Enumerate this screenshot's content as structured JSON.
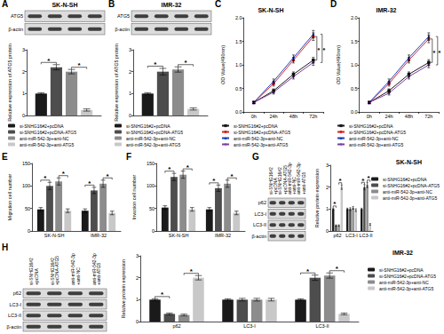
{
  "chart_data": [
    {
      "panel": "A",
      "type": "bar",
      "blot": {
        "title": "SK-N-SH",
        "rows": [
          "ATG5",
          "β-actin"
        ],
        "lanes": 4
      },
      "ylabel": "Relative expression of ATG5 protein",
      "categories": [
        null
      ],
      "tick_labels": "y",
      "ylim": [
        0,
        3
      ],
      "yticks": [
        0,
        1,
        2,
        3
      ],
      "legend": "bottom",
      "series": [
        {
          "name": "si-SNHG16#2+pcDNA",
          "color": "#1a1a1a",
          "values": [
            1.0
          ],
          "errors": [
            0.04
          ]
        },
        {
          "name": "si-SNHG16#2+pcDNA-ATG5",
          "color": "#4d4d4d",
          "values": [
            2.2
          ],
          "errors": [
            0.12
          ]
        },
        {
          "name": "anti-miR-542-3p+anti-NC",
          "color": "#8c8c8c",
          "values": [
            2.0
          ],
          "errors": [
            0.1
          ]
        },
        {
          "name": "anti-miR-542-3p+anti-ATG5",
          "color": "#c8c8c8",
          "values": [
            0.25
          ],
          "errors": [
            0.05
          ]
        }
      ],
      "significance": [
        {
          "label": "*",
          "category": 0,
          "series": [
            0,
            1
          ]
        },
        {
          "label": "*",
          "category": 0,
          "series": [
            2,
            3
          ]
        }
      ]
    },
    {
      "panel": "B",
      "type": "bar",
      "blot": {
        "title": "IMR-32",
        "rows": [
          "ATG5",
          "β-actin"
        ],
        "lanes": 4
      },
      "ylabel": "Relative expression of ATG5 protein",
      "categories": [
        null
      ],
      "tick_labels": "y",
      "ylim": [
        0,
        3
      ],
      "yticks": [
        0,
        1,
        2,
        3
      ],
      "legend": "bottom",
      "series": [
        {
          "name": "si-SNHG16#2+pcDNA",
          "color": "#1a1a1a",
          "values": [
            1.0
          ],
          "errors": [
            0.04
          ]
        },
        {
          "name": "si-SNHG16#2+pcDNA-ATG5",
          "color": "#4d4d4d",
          "values": [
            2.0
          ],
          "errors": [
            0.15
          ]
        },
        {
          "name": "anti-miR-542-3p+anti-NC",
          "color": "#8c8c8c",
          "values": [
            2.1
          ],
          "errors": [
            0.12
          ]
        },
        {
          "name": "anti-miR-542-3p+anti-ATG5",
          "color": "#c8c8c8",
          "values": [
            0.3
          ],
          "errors": [
            0.05
          ]
        }
      ],
      "significance": [
        {
          "label": "*",
          "category": 0,
          "series": [
            0,
            1
          ]
        },
        {
          "label": "*",
          "category": 0,
          "series": [
            2,
            3
          ]
        }
      ]
    },
    {
      "panel": "C",
      "type": "line",
      "title": "SK-N-SH",
      "ylabel": "OD Value(490nm)",
      "categories": [
        "0h",
        "24h",
        "48h",
        "72h"
      ],
      "ylim": [
        0,
        2
      ],
      "yticks": [
        {
          "value": 0,
          "label": "0.0"
        },
        0.5,
        {
          "value": 1,
          "label": "1.0"
        },
        1.5,
        {
          "value": 2,
          "label": "2.0"
        }
      ],
      "legend": "bottom",
      "series": [
        {
          "name": "si-SNHG16#2+pcDNA",
          "color": "#1a1a1a",
          "marker": "rect",
          "values": [
            0.2,
            0.45,
            0.8,
            1.1
          ],
          "errors": [
            0.02,
            0.04,
            0.05,
            0.06
          ]
        },
        {
          "name": "si-SNHG16#2+pcDNA-ATG5",
          "color": "#d62728",
          "marker": "circle",
          "values": [
            0.2,
            0.6,
            1.1,
            1.6
          ],
          "errors": [
            0.02,
            0.05,
            0.06,
            0.08
          ]
        },
        {
          "name": "anti-miR-542-3p+anti-NC",
          "color": "#1f3fbf",
          "marker": "triangle",
          "values": [
            0.2,
            0.65,
            1.15,
            1.65
          ],
          "errors": [
            0.02,
            0.05,
            0.06,
            0.08
          ]
        },
        {
          "name": "anti-miR-542-3p+anti-ATG5",
          "color": "#7b3f9e",
          "marker": "diamond",
          "values": [
            0.2,
            0.42,
            0.75,
            1.05
          ],
          "errors": [
            0.02,
            0.04,
            0.05,
            0.06
          ]
        }
      ],
      "significance": [
        {
          "label": "*",
          "series": [
            0,
            1
          ]
        },
        {
          "label": "*",
          "series": [
            2,
            3
          ]
        }
      ]
    },
    {
      "panel": "D",
      "type": "line",
      "title": "IMR-32",
      "ylabel": "OD Value(490nm)",
      "categories": [
        "0h",
        "24h",
        "48h",
        "72h"
      ],
      "ylim": [
        0,
        2
      ],
      "yticks": [
        {
          "value": 0,
          "label": "0.0"
        },
        0.5,
        {
          "value": 1,
          "label": "1.0"
        },
        1.5,
        {
          "value": 2,
          "label": "2.0"
        }
      ],
      "legend": "bottom",
      "series": [
        {
          "name": "si-SNHG16#2+pcDNA",
          "color": "#1a1a1a",
          "marker": "rect",
          "values": [
            0.2,
            0.45,
            0.8,
            1.05
          ],
          "errors": [
            0.02,
            0.04,
            0.05,
            0.06
          ]
        },
        {
          "name": "si-SNHG16#2+pcDNA-ATG5",
          "color": "#d62728",
          "marker": "circle",
          "values": [
            0.2,
            0.6,
            1.1,
            1.55
          ],
          "errors": [
            0.02,
            0.05,
            0.06,
            0.08
          ]
        },
        {
          "name": "anti-miR-542-3p+anti-NC",
          "color": "#1f3fbf",
          "marker": "triangle",
          "values": [
            0.2,
            0.65,
            1.15,
            1.6
          ],
          "errors": [
            0.02,
            0.05,
            0.06,
            0.08
          ]
        },
        {
          "name": "anti-miR-542-3p+anti-ATG5",
          "color": "#7b3f9e",
          "marker": "diamond",
          "values": [
            0.2,
            0.4,
            0.75,
            1.0
          ],
          "errors": [
            0.02,
            0.04,
            0.05,
            0.06
          ]
        }
      ],
      "significance": [
        {
          "label": "*",
          "series": [
            0,
            1
          ]
        },
        {
          "label": "*",
          "series": [
            2,
            3
          ]
        }
      ]
    },
    {
      "panel": "E",
      "type": "bar",
      "ylabel": "Migration cell number",
      "categories": [
        "SK-N-SH",
        "IMR-32"
      ],
      "ylim": [
        0,
        150
      ],
      "yticks": [
        0,
        50,
        100,
        150
      ],
      "series": [
        {
          "color": "#1a1a1a",
          "values": [
            48,
            45
          ],
          "errors": [
            4,
            4
          ]
        },
        {
          "color": "#4d4d4d",
          "values": [
            100,
            90
          ],
          "errors": [
            8,
            7
          ]
        },
        {
          "color": "#8c8c8c",
          "values": [
            110,
            105
          ],
          "errors": [
            8,
            8
          ]
        },
        {
          "color": "#c8c8c8",
          "values": [
            45,
            40
          ],
          "errors": [
            4,
            4
          ]
        }
      ],
      "significance": [
        {
          "label": "*",
          "category": 0,
          "series": [
            0,
            1
          ]
        },
        {
          "label": "*",
          "category": 0,
          "series": [
            2,
            3
          ]
        },
        {
          "label": "*",
          "category": 1,
          "series": [
            0,
            1
          ]
        },
        {
          "label": "*",
          "category": 1,
          "series": [
            2,
            3
          ]
        }
      ]
    },
    {
      "panel": "F",
      "type": "bar",
      "ylabel": "Invasion cell number",
      "categories": [
        "SK-N-SH",
        "IMR-32"
      ],
      "ylim": [
        0,
        150
      ],
      "yticks": [
        0,
        50,
        100,
        150
      ],
      "series": [
        {
          "color": "#1a1a1a",
          "values": [
            52,
            48
          ],
          "errors": [
            4,
            4
          ]
        },
        {
          "color": "#4d4d4d",
          "values": [
            120,
            95
          ],
          "errors": [
            8,
            7
          ]
        },
        {
          "color": "#8c8c8c",
          "values": [
            125,
            105
          ],
          "errors": [
            8,
            8
          ]
        },
        {
          "color": "#c8c8c8",
          "values": [
            48,
            40
          ],
          "errors": [
            4,
            4
          ]
        }
      ],
      "significance": [
        {
          "label": "*",
          "category": 0,
          "series": [
            0,
            1
          ]
        },
        {
          "label": "*",
          "category": 0,
          "series": [
            2,
            3
          ]
        },
        {
          "label": "*",
          "category": 1,
          "series": [
            0,
            1
          ]
        },
        {
          "label": "*",
          "category": 1,
          "series": [
            2,
            3
          ]
        }
      ]
    },
    {
      "panel": "G",
      "type": "bar",
      "title": "SK-N-SH",
      "blot": {
        "rows": [
          "p62",
          "LC3-I",
          "LC3-II",
          "β-actin"
        ],
        "lanes": [
          [
            "si-SNHG16#2",
            "+pcDNA"
          ],
          [
            "si-SNHG16#2",
            "+pcDNA-ATG5"
          ],
          [
            "anti-miR-542-3p",
            "+anti-NC"
          ],
          [
            "anti-miR-542-3p",
            "+anti-ATG5"
          ]
        ]
      },
      "ylabel": "Relative protein expression",
      "categories": [
        "p62",
        "LC3-I",
        "LC3-II"
      ],
      "ylim": [
        0,
        3
      ],
      "yticks": [
        0,
        1,
        2,
        3
      ],
      "legend": "right",
      "series": [
        {
          "name": "si-SNHG16#2+pcDNA",
          "color": "#1a1a1a",
          "values": [
            1.0,
            1.0,
            1.0
          ],
          "errors": [
            0.04,
            0.04,
            0.04
          ]
        },
        {
          "name": "si-SNHG16#2+pcDNA-ATG5",
          "color": "#4d4d4d",
          "values": [
            0.25,
            1.0,
            2.0
          ],
          "errors": [
            0.03,
            0.06,
            0.12
          ]
        },
        {
          "name": "anti-miR-542-3p+anti-NC",
          "color": "#8c8c8c",
          "values": [
            0.25,
            1.05,
            2.1
          ],
          "errors": [
            0.03,
            0.06,
            0.12
          ]
        },
        {
          "name": "anti-miR-542-3p+anti-ATG5",
          "color": "#c8c8c8",
          "values": [
            2.0,
            0.95,
            0.3
          ],
          "errors": [
            0.1,
            0.06,
            0.04
          ]
        }
      ],
      "significance": [
        {
          "label": "*",
          "category": 0,
          "series": [
            0,
            1
          ]
        },
        {
          "label": "*",
          "category": 0,
          "series": [
            2,
            3
          ]
        },
        {
          "label": "*",
          "category": 2,
          "series": [
            0,
            1
          ]
        },
        {
          "label": "*",
          "category": 2,
          "series": [
            2,
            3
          ]
        }
      ]
    },
    {
      "panel": "H",
      "type": "bar",
      "title": "IMR-32",
      "blot": {
        "rows": [
          "p62",
          "LC3-I",
          "LC3-II",
          "β-actin"
        ],
        "lanes": [
          [
            "si-SNHG16#2",
            "+pcDNA"
          ],
          [
            "si-SNHG16#2",
            "+pcDNA-ATG5"
          ],
          [
            "anti-miR-542-3p",
            "+anti-NC"
          ],
          [
            "anti-miR-542-3p",
            "+anti-ATG5"
          ]
        ]
      },
      "ylabel": "Relative protein expression",
      "categories": [
        "p62",
        "LC3-I",
        "LC3-II"
      ],
      "ylim": [
        0,
        3
      ],
      "yticks": [
        0,
        1,
        2,
        3
      ],
      "legend": "right",
      "series": [
        {
          "name": "si-SNHG16#2+pcDNA",
          "color": "#1a1a1a",
          "values": [
            1.0,
            1.0,
            1.0
          ],
          "errors": [
            0.04,
            0.04,
            0.04
          ]
        },
        {
          "name": "si-SNHG16#2+pcDNA-ATG5",
          "color": "#4d4d4d",
          "values": [
            0.35,
            1.0,
            2.0
          ],
          "errors": [
            0.04,
            0.06,
            0.12
          ]
        },
        {
          "name": "anti-miR-542-3p+anti-NC",
          "color": "#8c8c8c",
          "values": [
            0.3,
            1.0,
            2.1
          ],
          "errors": [
            0.04,
            0.06,
            0.12
          ]
        },
        {
          "name": "anti-miR-542-3p+anti-ATG5",
          "color": "#c8c8c8",
          "values": [
            2.0,
            1.0,
            0.35
          ],
          "errors": [
            0.1,
            0.06,
            0.04
          ]
        }
      ],
      "significance": [
        {
          "label": "*",
          "category": 0,
          "series": [
            0,
            1
          ]
        },
        {
          "label": "*",
          "category": 0,
          "series": [
            2,
            3
          ]
        },
        {
          "label": "*",
          "category": 2,
          "series": [
            0,
            1
          ]
        },
        {
          "label": "*",
          "category": 2,
          "series": [
            2,
            3
          ]
        }
      ]
    }
  ]
}
